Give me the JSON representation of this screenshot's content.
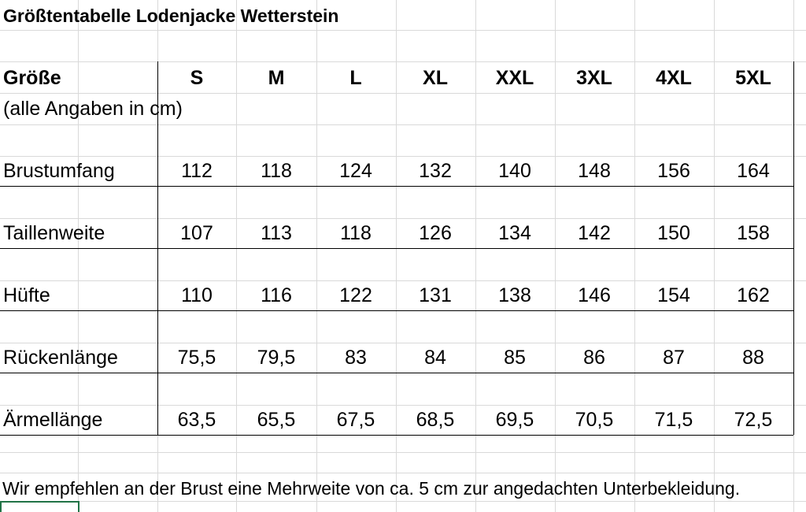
{
  "title": "Größtentabelle Lodenjacke Wetterstein",
  "header": {
    "label": "Größe",
    "sizes": [
      "S",
      "M",
      "L",
      "XL",
      "XXL",
      "3XL",
      "4XL",
      "5XL"
    ]
  },
  "subheader": "(alle Angaben in cm)",
  "rows": [
    {
      "label": "Brustumfang",
      "values": [
        "112",
        "118",
        "124",
        "132",
        "140",
        "148",
        "156",
        "164"
      ]
    },
    {
      "label": "Taillenweite",
      "values": [
        "107",
        "113",
        "118",
        "126",
        "134",
        "142",
        "150",
        "158"
      ]
    },
    {
      "label": "Hüfte",
      "values": [
        "110",
        "116",
        "122",
        "131",
        "138",
        "146",
        "154",
        "162"
      ]
    },
    {
      "label": "Rückenlänge",
      "values": [
        "75,5",
        "79,5",
        "83",
        "84",
        "85",
        "86",
        "87",
        "88"
      ]
    },
    {
      "label": "Ärmellänge",
      "values": [
        "63,5",
        "65,5",
        "67,5",
        "68,5",
        "69,5",
        "70,5",
        "71,5",
        "72,5"
      ]
    }
  ],
  "note": "Wir empfehlen an der Brust eine Mehrweite von ca. 5 cm zur angedachten Unterbekleidung.",
  "colors": {
    "selection_border": "#217346",
    "gridline": "#d9d9d9"
  }
}
